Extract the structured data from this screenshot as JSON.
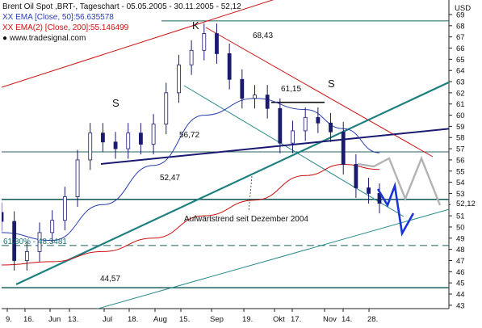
{
  "legend": {
    "line1": "Brent Oil Spot ,BRT-, Tageschart - 05.05.2005 - 30.11.2005 - 52,12",
    "line2": "XX EMA [Close, 50]:56.635578",
    "line3": "XX EMA(2) [Close, 200]:55.146499",
    "line4": "● www.tradesignal.com"
  },
  "chart_data": {
    "type": "line",
    "title": "Brent Oil Spot ,BRT-, Tageschart - 05.05.2005 - 30.11.2005 - 52,12",
    "currency_label": "USD",
    "last_value_label": "52,12",
    "ylim": [
      42.7,
      70.3
    ],
    "y_ticks": [
      43,
      44,
      45,
      46,
      47,
      48,
      49,
      50,
      51,
      52,
      53,
      54,
      55,
      56,
      57,
      58,
      59,
      60,
      61,
      62,
      63,
      64,
      65,
      66,
      67,
      68,
      69
    ],
    "x_tick_labels": [
      "9.",
      "16.",
      "Jun",
      "13.",
      "Jul",
      "18.",
      "Aug",
      "15.",
      "Sep",
      "19.",
      "Okt",
      "17.",
      "Nov",
      "14.",
      "28."
    ],
    "grid": false,
    "series": [
      {
        "name": "Brent Oil Spot ,BRT-",
        "color": "#1a1a6e",
        "x": [
          "2005-05-05",
          "2005-05-12",
          "2005-05-19",
          "2005-05-26",
          "2005-06-02",
          "2005-06-09",
          "2005-06-16",
          "2005-06-23",
          "2005-06-30",
          "2005-07-07",
          "2005-07-14",
          "2005-07-21",
          "2005-07-28",
          "2005-08-04",
          "2005-08-11",
          "2005-08-18",
          "2005-08-25",
          "2005-09-01",
          "2005-09-08",
          "2005-09-15",
          "2005-09-22",
          "2005-09-29",
          "2005-10-06",
          "2005-10-13",
          "2005-10-20",
          "2005-10-27",
          "2005-11-03",
          "2005-11-10",
          "2005-11-17",
          "2005-11-24",
          "2005-11-30"
        ],
        "values": [
          50.5,
          47.0,
          47.8,
          49.5,
          50.6,
          52.7,
          56.0,
          58.4,
          57.6,
          57.0,
          58.4,
          57.4,
          59.2,
          62.0,
          64.5,
          65.8,
          67.3,
          65.5,
          63.2,
          61.5,
          61.8,
          60.6,
          57.5,
          58.6,
          59.8,
          59.3,
          58.5,
          55.6,
          53.5,
          53.0,
          52.12
        ]
      },
      {
        "name": "XX EMA [Close, 50]",
        "color": "#2a3fb0",
        "x": [
          "2005-05-05",
          "2005-06-02",
          "2005-06-30",
          "2005-07-28",
          "2005-08-25",
          "2005-09-22",
          "2005-10-20",
          "2005-11-10",
          "2005-11-30"
        ],
        "values": [
          49.5,
          48.8,
          52.0,
          55.5,
          60.0,
          61.5,
          60.5,
          58.8,
          56.64
        ]
      },
      {
        "name": "XX EMA(2) [Close, 200]",
        "color": "#cc1111",
        "x": [
          "2005-05-05",
          "2005-06-02",
          "2005-06-30",
          "2005-07-28",
          "2005-08-25",
          "2005-09-22",
          "2005-10-20",
          "2005-11-10",
          "2005-11-30"
        ],
        "values": [
          46.6,
          46.9,
          47.8,
          49.0,
          51.0,
          52.4,
          54.6,
          55.6,
          55.15
        ]
      }
    ],
    "horizontal_levels": [
      {
        "value": 68.43,
        "label": "68,43"
      },
      {
        "value": 61.15,
        "label": "61,15"
      },
      {
        "value": 56.72,
        "label": "56,72"
      },
      {
        "value": 52.47,
        "label": "52,47"
      },
      {
        "value": 44.57,
        "label": "44,57"
      },
      {
        "value": 48.3481,
        "label": "61.80% - 48.3481"
      }
    ],
    "annotations": [
      "S",
      "K",
      "S",
      "Aufwärtstrend seit Dezember 2004"
    ]
  }
}
